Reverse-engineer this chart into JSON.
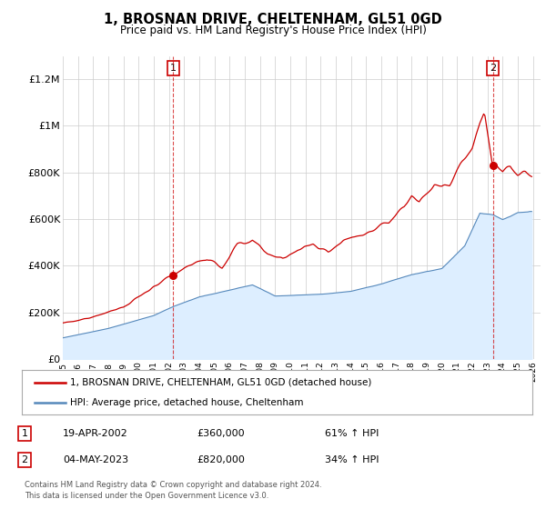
{
  "title": "1, BROSNAN DRIVE, CHELTENHAM, GL51 0GD",
  "subtitle": "Price paid vs. HM Land Registry's House Price Index (HPI)",
  "legend_line1": "1, BROSNAN DRIVE, CHELTENHAM, GL51 0GD (detached house)",
  "legend_line2": "HPI: Average price, detached house, Cheltenham",
  "annotation1_date": "19-APR-2002",
  "annotation1_price": "£360,000",
  "annotation1_hpi": "61% ↑ HPI",
  "annotation2_date": "04-MAY-2023",
  "annotation2_price": "£820,000",
  "annotation2_hpi": "34% ↑ HPI",
  "footer1": "Contains HM Land Registry data © Crown copyright and database right 2024.",
  "footer2": "This data is licensed under the Open Government Licence v3.0.",
  "red_color": "#cc0000",
  "blue_color": "#5588bb",
  "fill_color": "#ddeeff",
  "background_color": "#ffffff",
  "grid_color": "#cccccc",
  "annotation_box_color": "#cc0000",
  "ylim": [
    0,
    1300000
  ],
  "yticks": [
    0,
    200000,
    400000,
    600000,
    800000,
    1000000,
    1200000
  ],
  "ytick_labels": [
    "£0",
    "£200K",
    "£400K",
    "£600K",
    "£800K",
    "£1M",
    "£1.2M"
  ],
  "sale1_year": 2002.29,
  "sale1_price": 360000,
  "sale2_year": 2023.37,
  "sale2_price": 820000
}
